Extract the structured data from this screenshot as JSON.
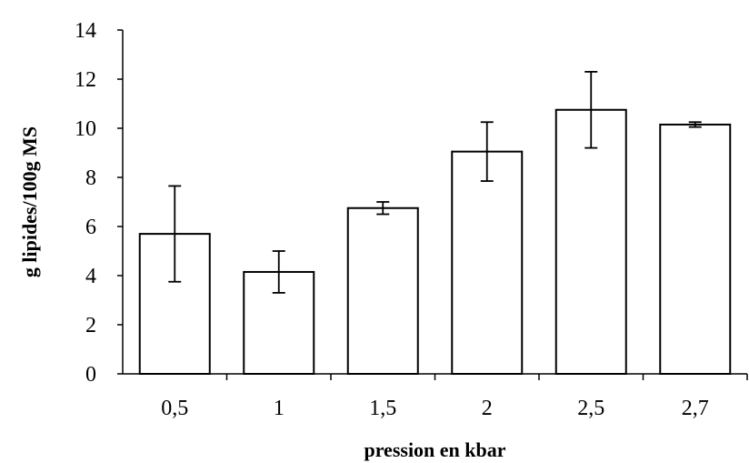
{
  "chart_data": {
    "type": "bar",
    "categories": [
      "0,5",
      "1",
      "1,5",
      "2",
      "2,5",
      "2,7"
    ],
    "values": [
      5.7,
      4.15,
      6.75,
      9.05,
      10.75,
      10.15
    ],
    "error": [
      1.95,
      0.85,
      0.25,
      1.2,
      1.55,
      0.1
    ],
    "xlabel": "pression en kbar",
    "ylabel": "g lipides/100g MS",
    "ylim": [
      0,
      14
    ],
    "yticks": [
      0,
      2,
      4,
      6,
      8,
      10,
      12,
      14
    ],
    "grid": false,
    "legend": "none",
    "colors": {
      "bar_fill": "#ffffff",
      "bar_stroke": "#000000"
    }
  }
}
